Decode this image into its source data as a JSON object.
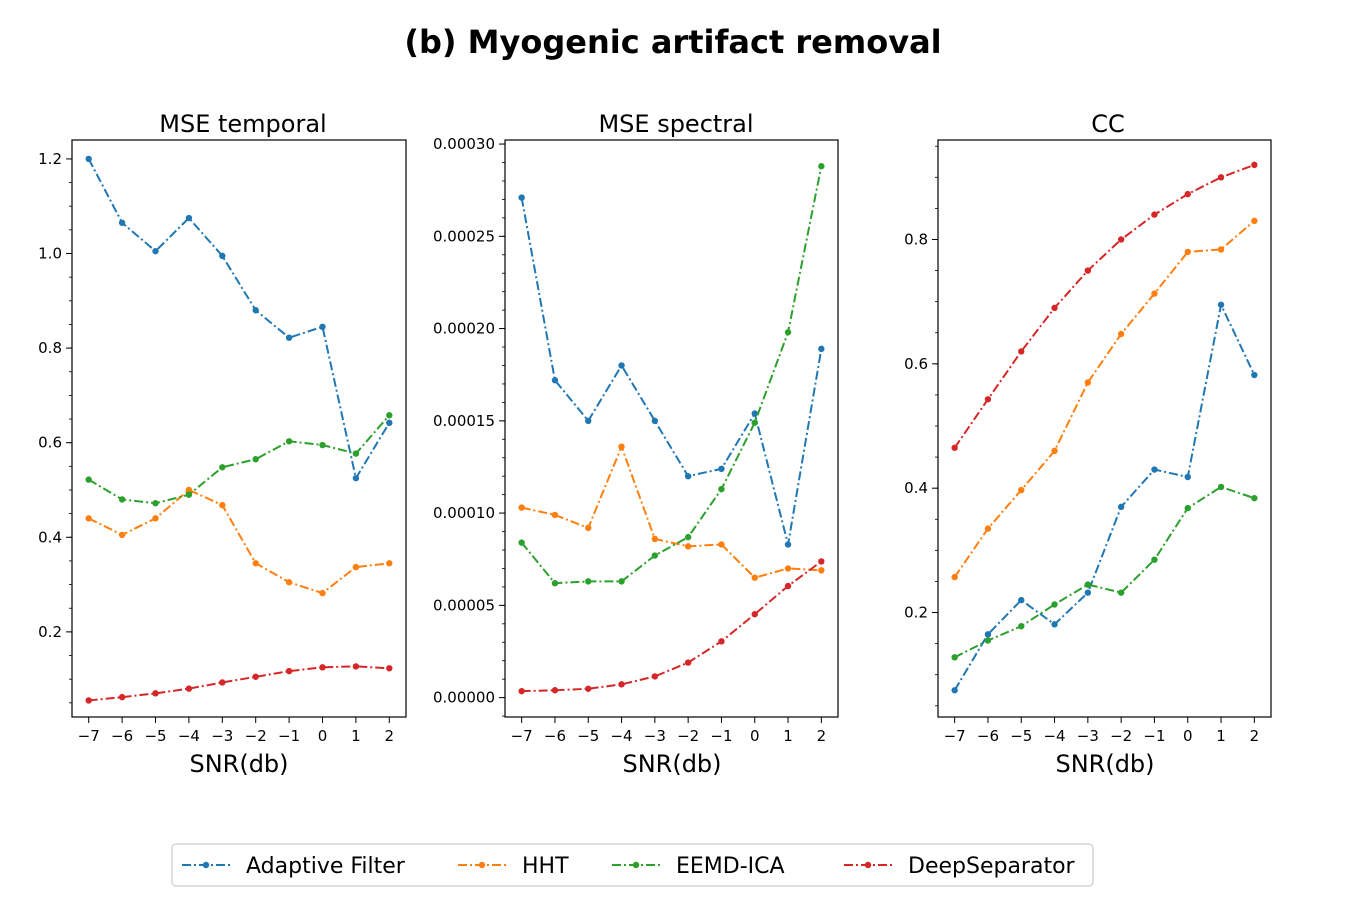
{
  "figure": {
    "title": "(b) Myogenic artifact removal"
  },
  "legend": {
    "entries": [
      {
        "name": "Adaptive Filter",
        "color": "#1f77b4"
      },
      {
        "name": "HHT",
        "color": "#ff7f0e"
      },
      {
        "name": "EEMD-ICA",
        "color": "#2ca02c"
      },
      {
        "name": "DeepSeparator",
        "color": "#d62728"
      }
    ],
    "placement": "bottom-center"
  },
  "chart_data": [
    {
      "type": "line",
      "title": "MSE temporal",
      "xlabel": "SNR(db)",
      "ylabel": "",
      "x": [
        -7,
        -6,
        -5,
        -4,
        -3,
        -2,
        -1,
        0,
        1,
        2
      ],
      "x_tick_labels": [
        "−7",
        "−6",
        "−5",
        "−4",
        "−3",
        "−2",
        "−1",
        "0",
        "1",
        "2"
      ],
      "xlim": [
        -7.5,
        2.5
      ],
      "ylim": [
        0.02,
        1.24
      ],
      "y_ticks": [
        0.2,
        0.4,
        0.6,
        0.8,
        1.0,
        1.2
      ],
      "y_tick_labels": [
        "0.2",
        "0.4",
        "0.6",
        "0.8",
        "1.0",
        "1.2"
      ],
      "y_minor_step": 0.05,
      "grid": false,
      "series": [
        {
          "name": "Adaptive Filter",
          "color": "#1f77b4",
          "values": [
            1.2,
            1.065,
            1.005,
            1.075,
            0.995,
            0.88,
            0.822,
            0.845,
            0.525,
            0.642
          ]
        },
        {
          "name": "HHT",
          "color": "#ff7f0e",
          "values": [
            0.44,
            0.405,
            0.44,
            0.5,
            0.468,
            0.345,
            0.305,
            0.282,
            0.337,
            0.345
          ]
        },
        {
          "name": "EEMD-ICA",
          "color": "#2ca02c",
          "values": [
            0.522,
            0.48,
            0.472,
            0.49,
            0.548,
            0.565,
            0.603,
            0.595,
            0.577,
            0.658
          ]
        },
        {
          "name": "DeepSeparator",
          "color": "#d62728",
          "values": [
            0.055,
            0.062,
            0.07,
            0.08,
            0.093,
            0.105,
            0.117,
            0.125,
            0.127,
            0.123
          ]
        }
      ]
    },
    {
      "type": "line",
      "title": "MSE spectral",
      "xlabel": "SNR(db)",
      "ylabel": "",
      "x": [
        -7,
        -6,
        -5,
        -4,
        -3,
        -2,
        -1,
        0,
        1,
        2
      ],
      "x_tick_labels": [
        "−7",
        "−6",
        "−5",
        "−4",
        "−3",
        "−2",
        "−1",
        "0",
        "1",
        "2"
      ],
      "xlim": [
        -7.5,
        2.5
      ],
      "ylim": [
        -1.05e-05,
        0.0003022
      ],
      "y_ticks": [
        0,
        5e-05,
        0.0001,
        0.00015,
        0.0002,
        0.00025,
        0.0003
      ],
      "y_tick_labels": [
        "0.00000",
        "0.00005",
        "0.00010",
        "0.00015",
        "0.00020",
        "0.00025",
        "0.00030"
      ],
      "y_minor_step": 1e-05,
      "grid": false,
      "series": [
        {
          "name": "Adaptive Filter",
          "color": "#1f77b4",
          "values": [
            0.000271,
            0.000172,
            0.00015,
            0.00018,
            0.00015,
            0.00012,
            0.000124,
            0.000154,
            8.3e-05,
            0.000189
          ]
        },
        {
          "name": "HHT",
          "color": "#ff7f0e",
          "values": [
            0.000103,
            9.9e-05,
            9.2e-05,
            0.000136,
            8.6e-05,
            8.2e-05,
            8.3e-05,
            6.5e-05,
            7e-05,
            6.9e-05
          ]
        },
        {
          "name": "EEMD-ICA",
          "color": "#2ca02c",
          "values": [
            8.4e-05,
            6.2e-05,
            6.3e-05,
            6.3e-05,
            7.7e-05,
            8.7e-05,
            0.000113,
            0.000149,
            0.000198,
            0.000288
          ]
        },
        {
          "name": "DeepSeparator",
          "color": "#d62728",
          "values": [
            3.5e-06,
            4e-06,
            4.8e-06,
            7.2e-06,
            1.15e-05,
            1.9e-05,
            3.05e-05,
            4.52e-05,
            6.05e-05,
            7.38e-05
          ]
        }
      ]
    },
    {
      "type": "line",
      "title": "CC",
      "xlabel": "SNR(db)",
      "ylabel": "",
      "x": [
        -7,
        -6,
        -5,
        -4,
        -3,
        -2,
        -1,
        0,
        1,
        2
      ],
      "x_tick_labels": [
        "−7",
        "−6",
        "−5",
        "−4",
        "−3",
        "−2",
        "−1",
        "0",
        "1",
        "2"
      ],
      "xlim": [
        -7.5,
        2.5
      ],
      "ylim": [
        0.032,
        0.96
      ],
      "y_ticks": [
        0.2,
        0.4,
        0.6,
        0.8
      ],
      "y_tick_labels": [
        "0.2",
        "0.4",
        "0.6",
        "0.8"
      ],
      "y_minor_step": 0.05,
      "grid": false,
      "series": [
        {
          "name": "Adaptive Filter",
          "color": "#1f77b4",
          "values": [
            0.075,
            0.165,
            0.22,
            0.181,
            0.232,
            0.37,
            0.43,
            0.418,
            0.695,
            0.582
          ]
        },
        {
          "name": "HHT",
          "color": "#ff7f0e",
          "values": [
            0.257,
            0.335,
            0.397,
            0.46,
            0.57,
            0.648,
            0.713,
            0.78,
            0.784,
            0.83
          ]
        },
        {
          "name": "EEMD-ICA",
          "color": "#2ca02c",
          "values": [
            0.128,
            0.155,
            0.178,
            0.213,
            0.245,
            0.232,
            0.285,
            0.368,
            0.402,
            0.384
          ]
        },
        {
          "name": "DeepSeparator",
          "color": "#d62728",
          "values": [
            0.465,
            0.543,
            0.62,
            0.69,
            0.75,
            0.8,
            0.84,
            0.873,
            0.9,
            0.92
          ]
        }
      ]
    }
  ]
}
